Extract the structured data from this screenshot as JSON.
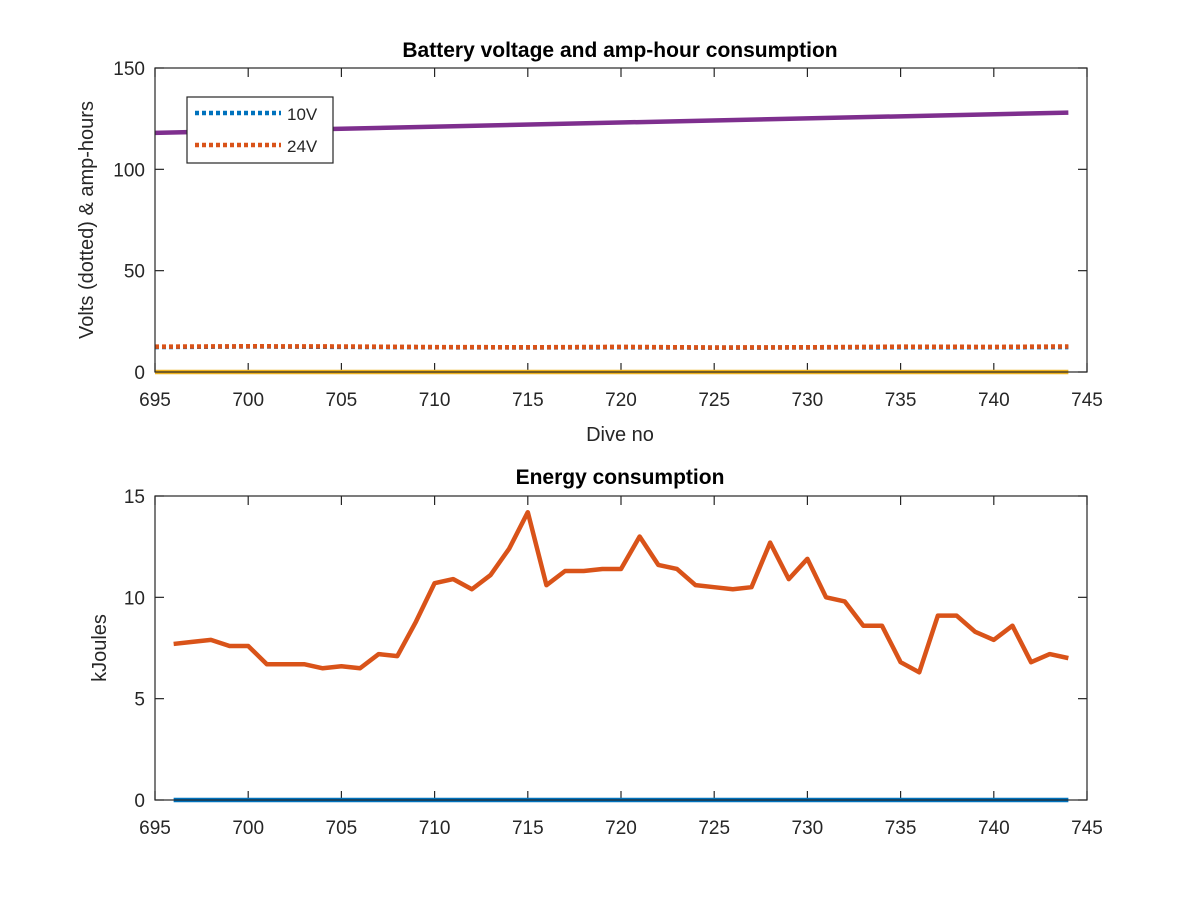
{
  "chart_data": [
    {
      "type": "line",
      "title": "Battery voltage and amp-hour consumption",
      "xlabel": "Dive no",
      "ylabel": "Volts (dotted) & amp-hours",
      "xlim": [
        695,
        745
      ],
      "ylim": [
        0,
        150
      ],
      "xticks": [
        695,
        700,
        705,
        710,
        715,
        720,
        725,
        730,
        735,
        740,
        745
      ],
      "yticks": [
        0,
        50,
        100,
        150
      ],
      "grid": false,
      "legend": {
        "placement": "top-left",
        "entries": [
          "10V",
          "24V"
        ]
      },
      "series": [
        {
          "name": "10V",
          "style": "dotted",
          "color": "#0072BD",
          "x": [
            695,
            700,
            705,
            710,
            715,
            720,
            725,
            730,
            735,
            740,
            744
          ],
          "y": [
            12.3,
            12.6,
            12.4,
            12.2,
            12.1,
            12.2,
            12.0,
            12.1,
            12.2,
            12.2,
            12.3
          ]
        },
        {
          "name": "24V",
          "style": "dotted",
          "color": "#D95319",
          "x": [
            695,
            700,
            705,
            710,
            715,
            720,
            725,
            730,
            735,
            740,
            744
          ],
          "y": [
            12.5,
            12.7,
            12.6,
            12.3,
            12.2,
            12.4,
            12.1,
            12.2,
            12.5,
            12.4,
            12.6
          ]
        },
        {
          "style": "solid",
          "color": "#7E2F8E",
          "x": [
            695,
            744
          ],
          "y": [
            118,
            128
          ]
        },
        {
          "style": "solid",
          "color": "#EDB120",
          "x": [
            695,
            744
          ],
          "y": [
            0,
            0
          ]
        }
      ]
    },
    {
      "type": "line",
      "title": "Energy consumption",
      "xlabel": "",
      "ylabel": "kJoules",
      "xlim": [
        695,
        745
      ],
      "ylim": [
        0,
        15
      ],
      "xticks": [
        695,
        700,
        705,
        710,
        715,
        720,
        725,
        730,
        735,
        740,
        745
      ],
      "yticks": [
        0,
        5,
        10,
        15
      ],
      "grid": false,
      "series": [
        {
          "style": "solid",
          "color": "#D95319",
          "x": [
            696,
            697,
            698,
            699,
            700,
            701,
            702,
            703,
            704,
            705,
            706,
            707,
            708,
            709,
            710,
            711,
            712,
            713,
            714,
            715,
            716,
            717,
            718,
            719,
            720,
            721,
            722,
            723,
            724,
            725,
            726,
            727,
            728,
            729,
            730,
            731,
            732,
            733,
            734,
            735,
            736,
            737,
            738,
            739,
            740,
            741,
            742,
            743,
            744
          ],
          "y": [
            7.7,
            7.8,
            7.9,
            7.6,
            7.6,
            6.7,
            6.7,
            6.7,
            6.5,
            6.6,
            6.5,
            7.2,
            7.1,
            8.8,
            10.7,
            10.9,
            10.4,
            11.1,
            12.4,
            14.2,
            10.6,
            11.3,
            11.3,
            11.4,
            11.4,
            13.0,
            11.6,
            11.4,
            10.6,
            10.5,
            10.4,
            10.5,
            12.7,
            10.9,
            11.9,
            10.0,
            9.8,
            8.6,
            8.6,
            6.8,
            6.3,
            9.1,
            9.1,
            8.3,
            7.9,
            8.6,
            6.8,
            7.2,
            7.0
          ]
        },
        {
          "style": "solid",
          "color": "#0072BD",
          "x": [
            696,
            744
          ],
          "y": [
            0,
            0
          ]
        }
      ]
    }
  ]
}
